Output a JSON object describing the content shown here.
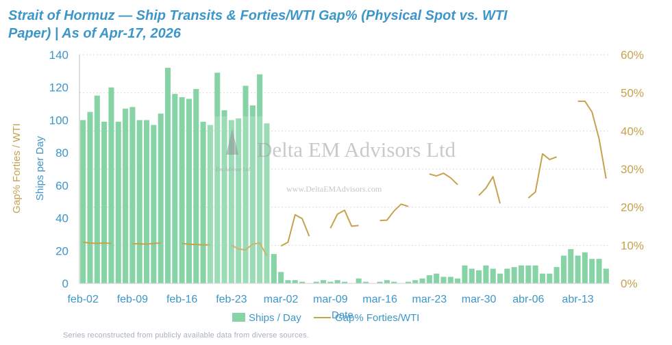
{
  "title": "Strait of Hormuz — Ship Transits & Forties/WTI Gap% (Physical Spot vs. WTI Paper) | As of Apr-17, 2026",
  "footnote": "Series reconstructed from publicly available data from diverse sources.",
  "watermark": {
    "name": "Delta EM Advisors Ltd",
    "url": "www.DeltaEMAdvisors.com",
    "small": "Em Advisor Ltd"
  },
  "colors": {
    "bars": "#86d3a5",
    "line": "#c5a24c",
    "text": "#3d96c9"
  },
  "chart_data": {
    "type": "bar+line",
    "xlabel": "Date",
    "ylabel_left": "Ships per Day",
    "ylabel_right": "Gap% Forties / WTI",
    "ylim_left": [
      0,
      140
    ],
    "ylim_right": [
      0,
      60
    ],
    "yticks_left": [
      0,
      20,
      40,
      60,
      80,
      100,
      120,
      140
    ],
    "yticks_right": [
      "0%",
      "10%",
      "20%",
      "30%",
      "40%",
      "50%",
      "60%"
    ],
    "yticks_right_values": [
      0,
      10,
      20,
      30,
      40,
      50,
      60
    ],
    "x_ticks": [
      {
        "label": "feb-02",
        "day": 0
      },
      {
        "label": "feb-09",
        "day": 7
      },
      {
        "label": "feb-16",
        "day": 14
      },
      {
        "label": "feb-23",
        "day": 21
      },
      {
        "label": "mar-02",
        "day": 28
      },
      {
        "label": "mar-09",
        "day": 35
      },
      {
        "label": "mar-16",
        "day": 42
      },
      {
        "label": "mar-23",
        "day": 49
      },
      {
        "label": "mar-30",
        "day": 56
      },
      {
        "label": "abr-06",
        "day": 63
      },
      {
        "label": "abr-13",
        "day": 70
      }
    ],
    "x_range_days": [
      0,
      75
    ],
    "legend": [
      {
        "name": "Ships / Day",
        "kind": "bar"
      },
      {
        "name": "Gap% Forties/WTI",
        "kind": "line"
      }
    ],
    "series": [
      {
        "name": "Ships / Day",
        "kind": "bar",
        "axis": "left",
        "values": [
          100,
          105,
          115,
          99,
          120,
          99,
          107,
          108,
          100,
          100,
          97,
          104,
          132,
          116,
          114,
          113,
          119,
          99,
          97,
          129,
          106,
          100,
          101,
          121,
          109,
          128,
          98,
          18,
          7,
          2,
          2,
          1,
          0,
          1,
          2,
          1,
          2,
          1,
          0,
          3,
          1,
          0,
          1,
          2,
          1,
          0,
          1,
          2,
          3,
          5,
          6,
          4,
          4,
          3,
          11,
          9,
          8,
          11,
          9,
          6,
          9,
          10,
          11,
          11,
          11,
          6,
          6,
          10,
          17,
          21,
          17,
          19,
          15,
          15,
          9
        ]
      },
      {
        "name": "Gap% Forties/WTI",
        "kind": "line",
        "axis": "right",
        "segments": [
          {
            "x": [
              0,
              1,
              2,
              3,
              4
            ],
            "y": [
              10.8,
              10.6,
              10.5,
              10.6,
              10.5
            ]
          },
          {
            "x": [
              7,
              8,
              9,
              10,
              11
            ],
            "y": [
              10.4,
              10.4,
              10.3,
              10.5,
              10.6
            ]
          },
          {
            "x": [
              14,
              15,
              16,
              17,
              18
            ],
            "y": [
              10.5,
              10.3,
              10.2,
              10.1,
              10.1
            ]
          },
          {
            "x": [
              21,
              22,
              23,
              24,
              25,
              26
            ],
            "y": [
              10.0,
              9.0,
              8.8,
              10.3,
              10.6,
              7.2
            ]
          },
          {
            "x": [
              28,
              29,
              30,
              31,
              32
            ],
            "y": [
              9.8,
              10.8,
              18.0,
              17.0,
              12.4
            ]
          },
          {
            "x": [
              35,
              36,
              37,
              38,
              39
            ],
            "y": [
              14.5,
              18.2,
              19.2,
              15.0,
              15.2
            ]
          },
          {
            "x": [
              42,
              43,
              44,
              45,
              46
            ],
            "y": [
              16.5,
              16.6,
              19.0,
              20.8,
              20.2
            ]
          },
          {
            "x": [
              49,
              50,
              51,
              52,
              53
            ],
            "y": [
              28.7,
              28.2,
              28.9,
              27.7,
              25.9
            ]
          },
          {
            "x": [
              56,
              57,
              58,
              59
            ],
            "y": [
              23.1,
              25.0,
              28.0,
              21.0
            ]
          },
          {
            "x": [
              63,
              64,
              65,
              66,
              67
            ],
            "y": [
              22.4,
              24.0,
              34.0,
              32.5,
              33.2
            ]
          },
          {
            "x": [
              70,
              71,
              72,
              73,
              74
            ],
            "y": [
              47.8,
              47.8,
              45.0,
              38.0,
              27.5
            ]
          }
        ]
      }
    ]
  }
}
